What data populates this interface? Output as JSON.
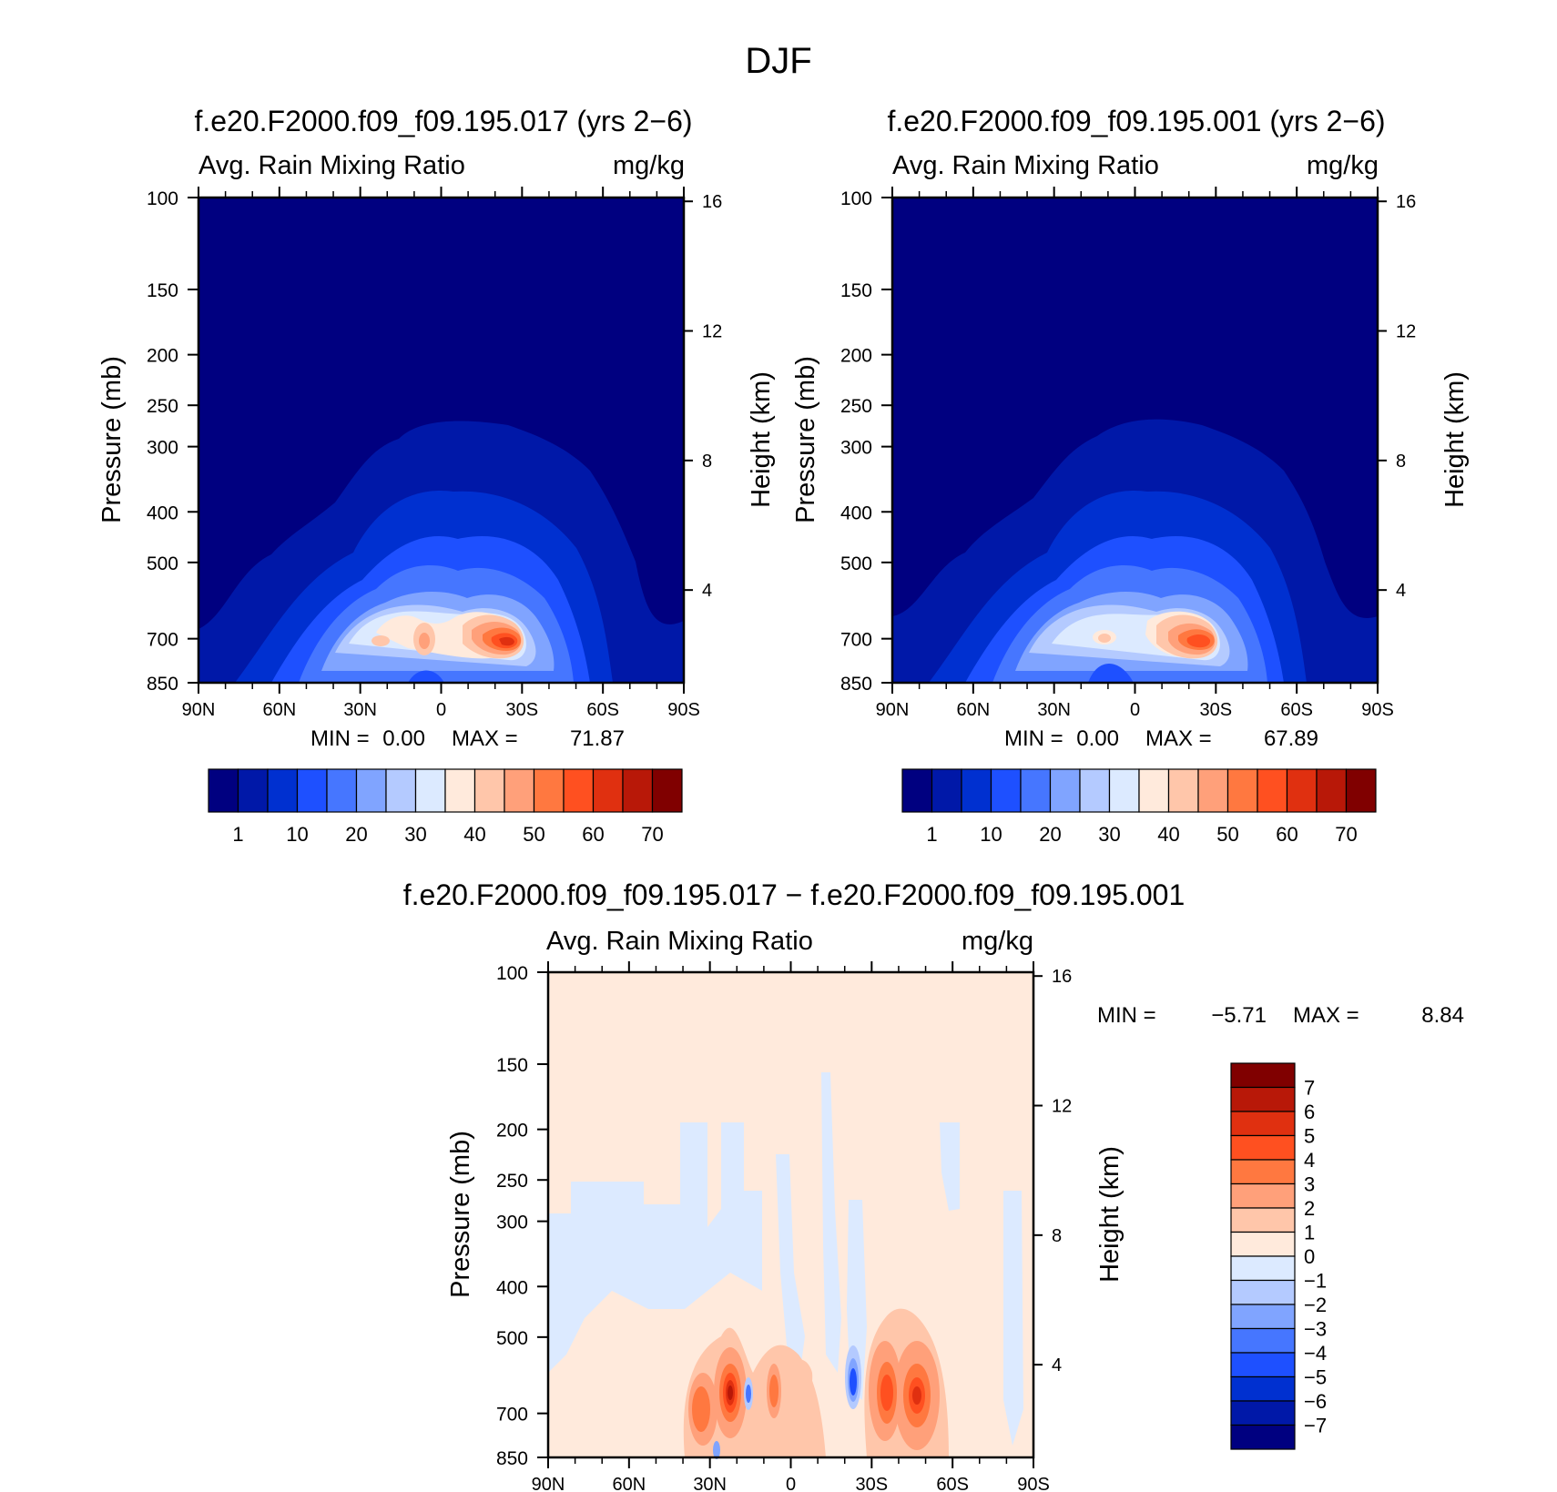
{
  "page_title": "DJF",
  "colors": {
    "abs_levels": [
      "#000080",
      "#0018A8",
      "#0030D0",
      "#1E50FF",
      "#4676FF",
      "#80A4FF",
      "#B4CAFF",
      "#DCEAFF",
      "#FFEADC",
      "#FFC6AA",
      "#FFA07A",
      "#FF7840",
      "#FF5020",
      "#E03010",
      "#B81808",
      "#800000"
    ],
    "diff_levels": [
      "#000080",
      "#0018A8",
      "#0030D0",
      "#1E50FF",
      "#4676FF",
      "#80A4FF",
      "#B4CAFF",
      "#DCEAFF",
      "#FFEADC",
      "#FFC6AA",
      "#FFA07A",
      "#FF7840",
      "#FF5020",
      "#E03010",
      "#B81808",
      "#800000"
    ]
  },
  "chart_data": [
    {
      "type": "heatmap",
      "title": "f.e20.F2000.f09_f09.195.017 (yrs 2−6)",
      "left_label": "Avg. Rain Mixing Ratio",
      "right_label": "mg/kg",
      "xlabel": "",
      "ylabel": "Pressure (mb)",
      "y2label": "Height (km)",
      "x_ticks": [
        "90N",
        "60N",
        "30N",
        "0",
        "30S",
        "60S",
        "90S"
      ],
      "y_ticks": [
        100,
        150,
        200,
        250,
        300,
        400,
        500,
        700,
        850
      ],
      "y2_ticks": [
        16,
        12,
        8,
        4
      ],
      "log_pressure": true,
      "min_label": "MIN =",
      "min_value": "0.00",
      "max_label": "MAX =",
      "max_value": "71.87",
      "colorbar_labels": [
        "1",
        "10",
        "20",
        "30",
        "40",
        "50",
        "60",
        "70"
      ],
      "features": [
        {
          "lat": -36,
          "p": 700,
          "value": 71.87
        },
        {
          "lat": -18,
          "p": 690,
          "value": 48
        },
        {
          "lat": 10,
          "p": 690,
          "value": 42
        },
        {
          "lat": 25,
          "p": 700,
          "value": 36
        }
      ]
    },
    {
      "type": "heatmap",
      "title": "f.e20.F2000.f09_f09.195.001 (yrs 2−6)",
      "left_label": "Avg. Rain Mixing Ratio",
      "right_label": "mg/kg",
      "xlabel": "",
      "ylabel": "Pressure (mb)",
      "y2label": "Height (km)",
      "x_ticks": [
        "90N",
        "60N",
        "30N",
        "0",
        "30S",
        "60S",
        "90S"
      ],
      "y_ticks": [
        100,
        150,
        200,
        250,
        300,
        400,
        500,
        700,
        850
      ],
      "y2_ticks": [
        16,
        12,
        8,
        4
      ],
      "log_pressure": true,
      "min_label": "MIN =",
      "min_value": "0.00",
      "max_label": "MAX =",
      "max_value": "67.89",
      "colorbar_labels": [
        "1",
        "10",
        "20",
        "30",
        "40",
        "50",
        "60",
        "70"
      ],
      "features": [
        {
          "lat": -36,
          "p": 700,
          "value": 67.89
        },
        {
          "lat": -20,
          "p": 690,
          "value": 45
        },
        {
          "lat": 11,
          "p": 695,
          "value": 40
        }
      ]
    },
    {
      "type": "heatmap",
      "title": "f.e20.F2000.f09_f09.195.017 − f.e20.F2000.f09_f09.195.001",
      "left_label": "Avg. Rain Mixing Ratio",
      "right_label": "mg/kg",
      "xlabel": "",
      "ylabel": "Pressure (mb)",
      "y2label": "Height (km)",
      "x_ticks": [
        "90N",
        "60N",
        "30N",
        "0",
        "30S",
        "60S",
        "90S"
      ],
      "y_ticks": [
        100,
        150,
        200,
        250,
        300,
        400,
        500,
        700,
        850
      ],
      "y2_ticks": [
        16,
        12,
        8,
        4
      ],
      "log_pressure": true,
      "min_label": "MIN =",
      "min_value": "−5.71",
      "max_label": "MAX =",
      "max_value": "8.84",
      "colorbar_labels": [
        "7",
        "6",
        "5",
        "4",
        "3",
        "2",
        "1",
        "0",
        "−1",
        "−2",
        "−3",
        "−4",
        "−5",
        "−6",
        "−7"
      ],
      "features": [
        {
          "lat": 24,
          "p": 700,
          "value": 8.84
        },
        {
          "lat": 32,
          "p": 720,
          "value": 5
        },
        {
          "lat": 15,
          "p": 690,
          "value": 4
        },
        {
          "lat": 7,
          "p": 690,
          "value": 3
        },
        {
          "lat": -33,
          "p": 700,
          "value": 6
        },
        {
          "lat": -42,
          "p": 700,
          "value": 6
        },
        {
          "lat": -22,
          "p": 680,
          "value": -5.71
        },
        {
          "lat": 17,
          "p": 700,
          "value": -4
        },
        {
          "lat": 27,
          "p": 850,
          "value": -3
        }
      ]
    }
  ]
}
